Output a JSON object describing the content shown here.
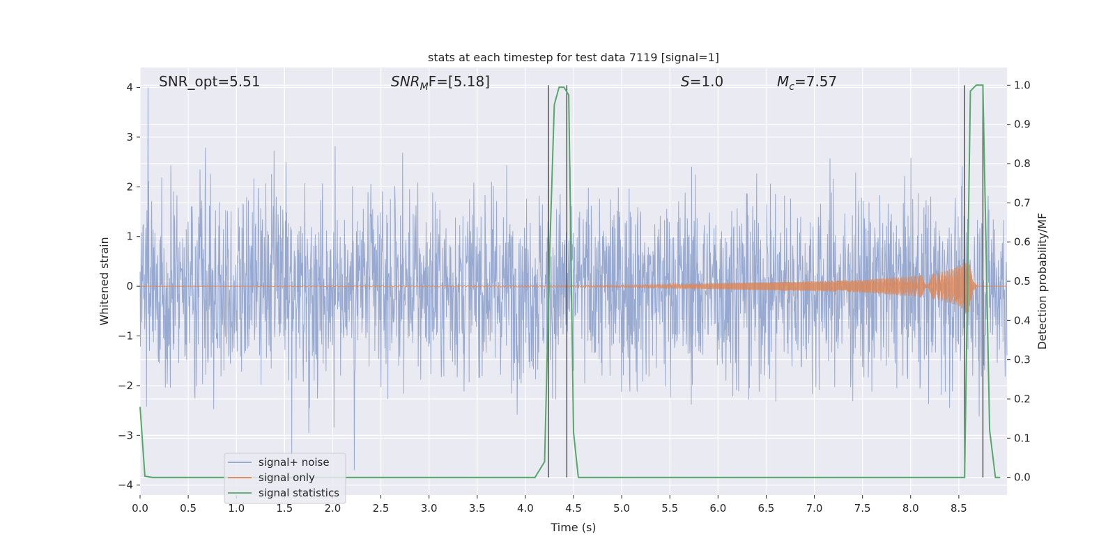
{
  "chart_data": {
    "type": "line",
    "title": "stats at each timestep for test data 7119 [signal=1]",
    "xlabel": "Time (s)",
    "ylabel": "Whitened strain",
    "y2label": "Detection probability/MF",
    "xlim": [
      0.0,
      9.0
    ],
    "ylim": [
      -4.2,
      4.4
    ],
    "y2lim": [
      -0.045,
      1.045
    ],
    "xticks": [
      "0.0",
      "0.5",
      "1.0",
      "1.5",
      "2.0",
      "2.5",
      "3.0",
      "3.5",
      "4.0",
      "4.5",
      "5.0",
      "5.5",
      "6.0",
      "6.5",
      "7.0",
      "7.5",
      "8.0",
      "8.5"
    ],
    "xtick_values": [
      0.0,
      0.5,
      1.0,
      1.5,
      2.0,
      2.5,
      3.0,
      3.5,
      4.0,
      4.5,
      5.0,
      5.5,
      6.0,
      6.5,
      7.0,
      7.5,
      8.0,
      8.5
    ],
    "yticks": [
      "−4",
      "−3",
      "−2",
      "−1",
      "0",
      "1",
      "2",
      "3",
      "4"
    ],
    "ytick_values": [
      -4,
      -3,
      -2,
      -1,
      0,
      1,
      2,
      3,
      4
    ],
    "y2ticks": [
      "0.0",
      "0.1",
      "0.2",
      "0.3",
      "0.4",
      "0.5",
      "0.6",
      "0.7",
      "0.8",
      "0.9",
      "1.0"
    ],
    "y2tick_values": [
      0.0,
      0.1,
      0.2,
      0.3,
      0.4,
      0.5,
      0.6,
      0.7,
      0.8,
      0.9,
      1.0
    ],
    "grid": true,
    "legend_placement": "lower-left",
    "annotations": {
      "snr_opt": "SNR_opt=5.51",
      "snr_mf_main": "SNR",
      "snr_mf_sub": "M",
      "snr_mf_rest": "F=[5.18]",
      "s_var": "S",
      "s_rest": "=1.0",
      "mc_var": "M",
      "mc_sub": "c",
      "mc_rest": "=7.57"
    },
    "series": [
      {
        "name": "signal+ noise",
        "color": "#8ea2cc",
        "axis": "left",
        "description": "whitened strain noise, bulk amplitude about ±1.5 with peaks to about ±4",
        "t_range": [
          0.0,
          9.0
        ],
        "peak_pos": 4.0,
        "peak_neg": -3.7
      },
      {
        "name": "signal only",
        "color": "#dd8452",
        "axis": "left",
        "description": "chirp signal, near zero early and growing to about ±0.6 near 8.6 s",
        "envelope_t": [
          0.0,
          5.0,
          6.0,
          7.0,
          7.5,
          8.0,
          8.3,
          8.5,
          8.6,
          8.65,
          8.7
        ],
        "envelope_amp": [
          0.0,
          0.02,
          0.06,
          0.1,
          0.13,
          0.2,
          0.28,
          0.4,
          0.55,
          0.1,
          0.0
        ]
      },
      {
        "name": "signal statistics",
        "color": "#55a868",
        "axis": "right",
        "x": [
          0.0,
          0.05,
          0.13,
          4.1,
          4.2,
          4.25,
          4.3,
          4.35,
          4.4,
          4.45,
          4.5,
          4.55,
          8.56,
          8.62,
          8.68,
          8.75,
          8.82,
          8.88,
          8.93
        ],
        "y": [
          0.18,
          0.003,
          0.0,
          0.0,
          0.04,
          0.55,
          0.95,
          0.995,
          0.995,
          0.975,
          0.115,
          0.0,
          0.0,
          0.985,
          1.0,
          1.0,
          0.12,
          0.0,
          0.0
        ]
      }
    ],
    "vertical_lines": [
      {
        "x": 4.24,
        "y_top": 1.0,
        "y_bottom": 0.0
      },
      {
        "x": 4.43,
        "y_top": 1.0,
        "y_bottom": 0.0
      },
      {
        "x": 8.56,
        "y_top": 1.0,
        "y_bottom": 0.0
      },
      {
        "x": 8.75,
        "y_top": 1.0,
        "y_bottom": 0.0
      }
    ]
  }
}
